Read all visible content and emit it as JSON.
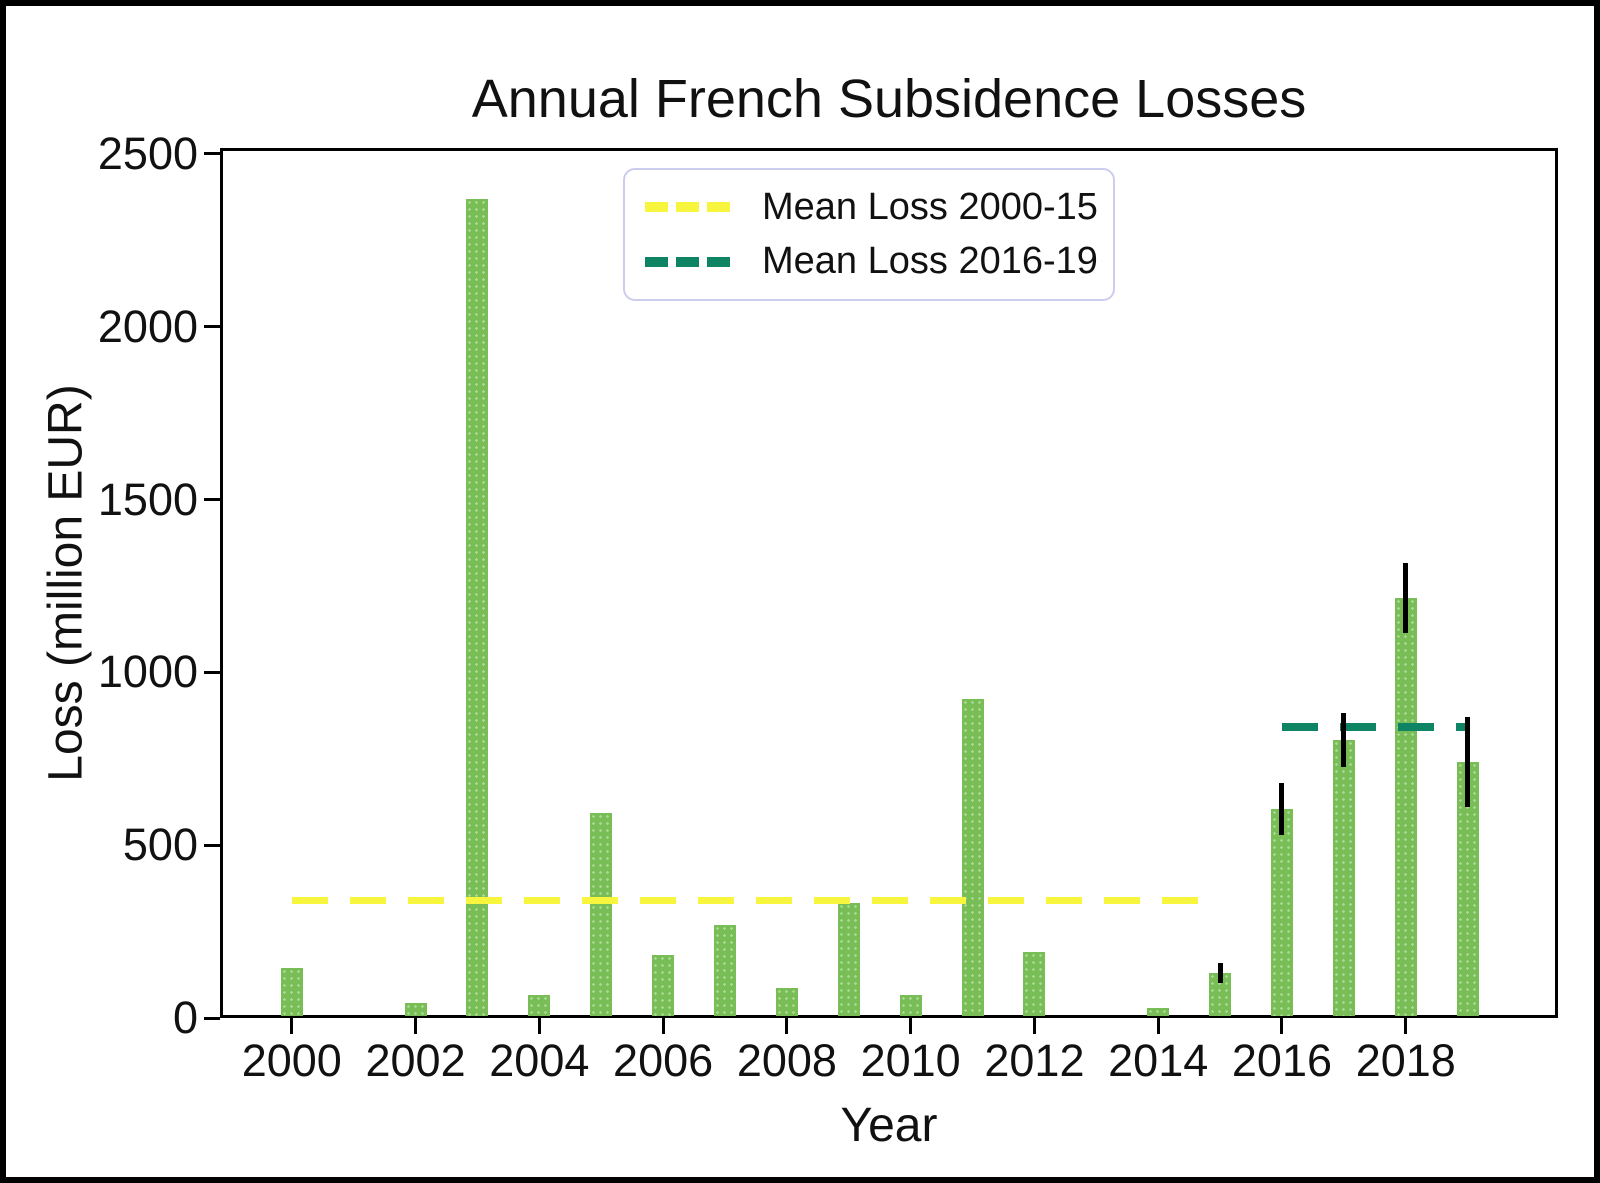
{
  "chart_data": {
    "type": "bar",
    "title": "Annual French Subsidence Losses",
    "xlabel": "Year",
    "ylabel": "Loss (million EUR)",
    "units": "million EUR",
    "xlim": [
      1998.84,
      2020.46
    ],
    "ylim": [
      0,
      2517
    ],
    "yticks": [
      0,
      500,
      1000,
      1500,
      2000,
      2500
    ],
    "xticks": [
      2000,
      2002,
      2004,
      2006,
      2008,
      2010,
      2012,
      2014,
      2016,
      2018
    ],
    "grid": false,
    "bar_color": "#78bd56",
    "bar_dot_color": "#a6d88f",
    "error_bar_color": "#000000",
    "years": [
      2000,
      2001,
      2002,
      2003,
      2004,
      2005,
      2006,
      2007,
      2008,
      2009,
      2010,
      2011,
      2012,
      2013,
      2014,
      2015,
      2016,
      2017,
      2018,
      2019
    ],
    "values": [
      145,
      0,
      42,
      2370,
      67,
      592,
      183,
      268,
      86,
      334,
      66,
      922,
      192,
      0,
      28,
      130,
      605,
      805,
      1215,
      740
    ],
    "errors": [
      null,
      null,
      null,
      null,
      null,
      null,
      null,
      null,
      null,
      null,
      null,
      null,
      null,
      null,
      null,
      28,
      75,
      78,
      100,
      130
    ],
    "mean_lines": [
      {
        "label": "Mean Loss 2000-15",
        "value": 339,
        "span_years": [
          2000,
          2015
        ],
        "color": "#f7f53d",
        "style": "dashed",
        "thickness": 7
      },
      {
        "label": "Mean Loss 2016-19",
        "value": 841,
        "span_years": [
          2016,
          2019
        ],
        "color": "#0e8464",
        "style": "dashed",
        "thickness": 8
      }
    ],
    "legend": {
      "position": "upper center",
      "border_color": "#ccccee",
      "entries": [
        "Mean Loss 2000-15",
        "Mean Loss 2016-19"
      ]
    }
  }
}
